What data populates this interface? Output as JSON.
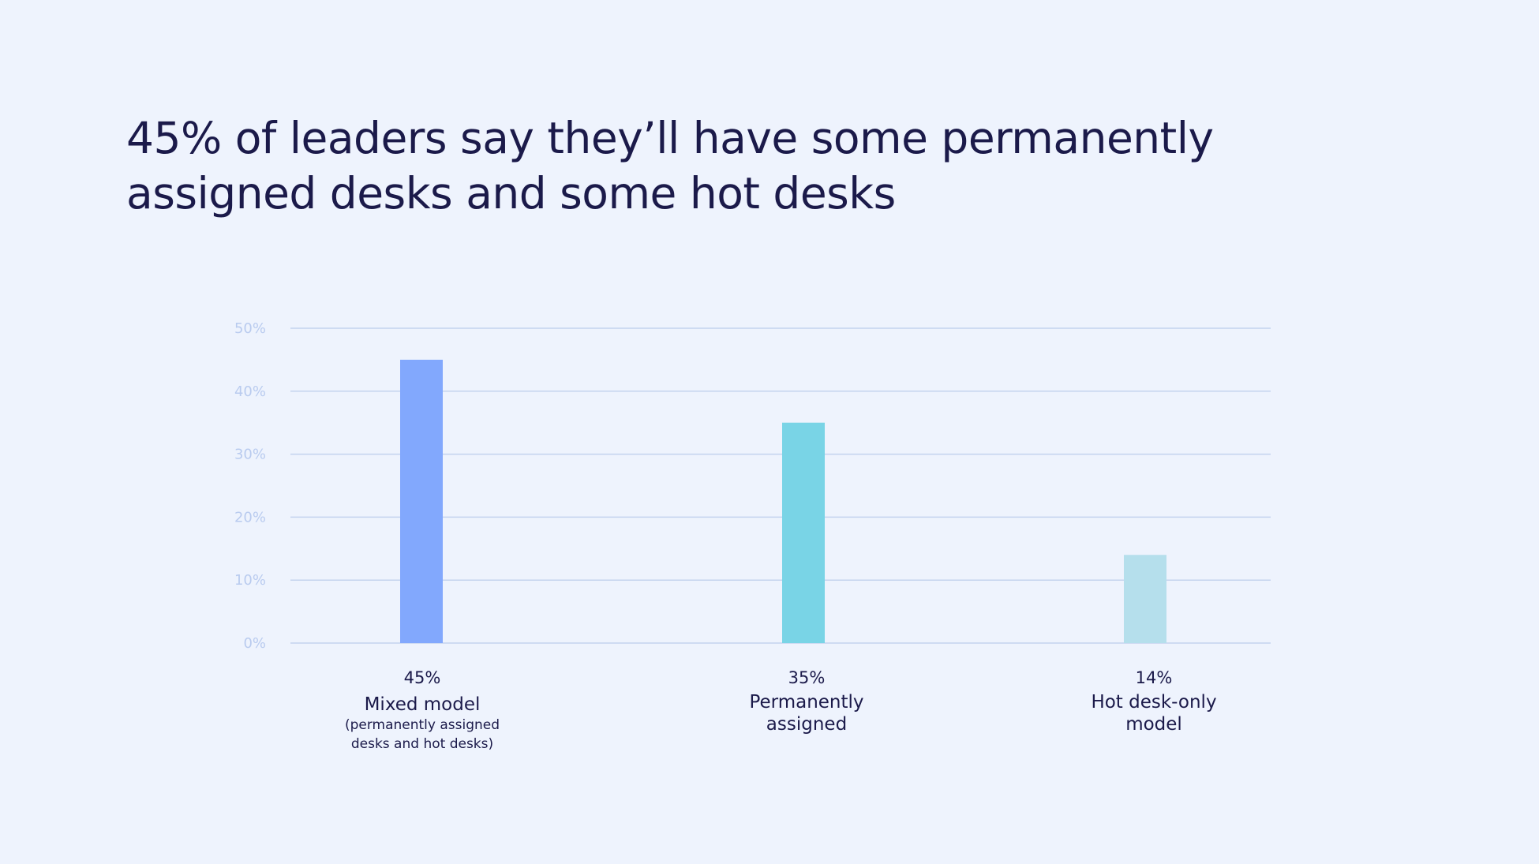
{
  "title": "45% of leaders say they’ll have some permanently assigned desks and some hot desks",
  "colors": {
    "background": "#eef3fd",
    "text": "#1b1a4a",
    "grid": "#c4d3ee",
    "tick": "#b9cbef"
  },
  "chart_data": {
    "type": "bar",
    "title": "45% of leaders say they’ll have some permanently assigned desks and some hot desks",
    "xlabel": "",
    "ylabel": "",
    "ylim": [
      0,
      50
    ],
    "yticks": [
      "0%",
      "10%",
      "20%",
      "30%",
      "40%",
      "50%"
    ],
    "grid": true,
    "legend": "none",
    "categories": [
      "Mixed model",
      "Permanently assigned",
      "Hot desk-only model"
    ],
    "values": [
      45,
      35,
      14
    ],
    "value_labels": [
      "45%",
      "35%",
      "14%"
    ],
    "category_labels": [
      {
        "lines": [
          "Mixed model"
        ],
        "sublines": [
          "(permanently assigned",
          "desks and hot desks)"
        ]
      },
      {
        "lines": [
          "Permanently",
          "assigned"
        ],
        "sublines": []
      },
      {
        "lines": [
          "Hot desk-only",
          "model"
        ],
        "sublines": []
      }
    ],
    "bar_colors": [
      "#82a8fd",
      "#79d4e6",
      "#b5dfec"
    ]
  }
}
